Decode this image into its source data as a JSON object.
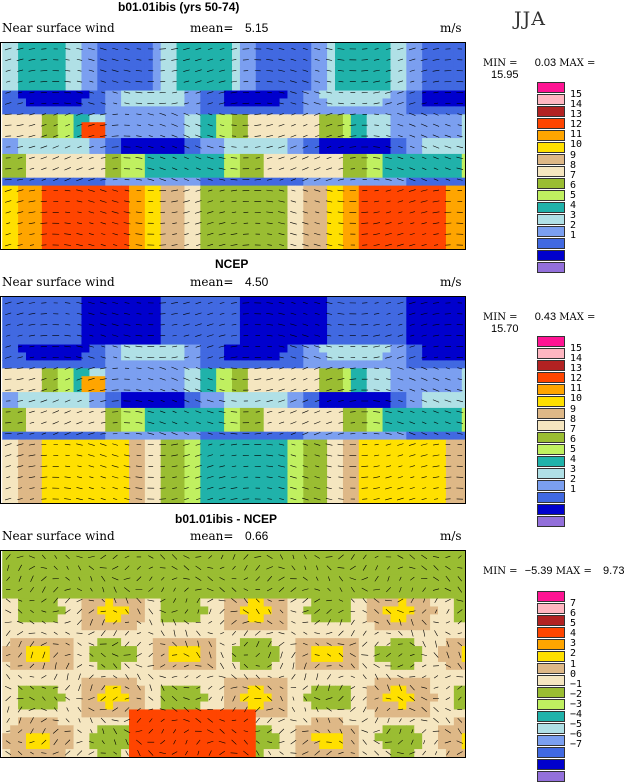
{
  "season": "JJA",
  "palette": [
    "#ff1493",
    "#ffb6c1",
    "#b22222",
    "#ff4500",
    "#ffa500",
    "#ffe000",
    "#deb887",
    "#f5e6c0",
    "#9abd32",
    "#c0f060",
    "#20b2aa",
    "#b0e0e6",
    "#7b9ff0",
    "#4169e1",
    "#0000cd",
    "#9370db"
  ],
  "panels": [
    {
      "title": "b01.01ibis (yrs 50-74)",
      "variable": "Near surface wind",
      "mean_label": "mean=",
      "mean": "5.15",
      "units": "m/s",
      "min_label": "MIN =",
      "min": "0.03",
      "max_label": "MAX =",
      "max": "15.95",
      "legend_ticks": [
        "15",
        "14",
        "13",
        "12",
        "11",
        "10",
        "9",
        "8",
        "7",
        "6",
        "5",
        "4",
        "3",
        "2",
        "1"
      ]
    },
    {
      "title": "NCEP",
      "variable": "Near surface wind",
      "mean_label": "mean=",
      "mean": "4.50",
      "units": "m/s",
      "min_label": "MIN =",
      "min": "0.43",
      "max_label": "MAX =",
      "max": "15.70",
      "legend_ticks": [
        "15",
        "14",
        "13",
        "12",
        "11",
        "10",
        "9",
        "8",
        "7",
        "6",
        "5",
        "4",
        "3",
        "2",
        "1"
      ]
    },
    {
      "title": "b01.01ibis - NCEP",
      "variable": "Near surface wind",
      "mean_label": "mean=",
      "mean": "0.66",
      "units": "m/s",
      "min_label": "MIN =",
      "min": "−5.39",
      "max_label": "MAX =",
      "max": "9.73",
      "legend_ticks": [
        "7",
        "6",
        "5",
        "4",
        "3",
        "2",
        "1",
        "0",
        "−1",
        "−2",
        "−3",
        "−4",
        "−5",
        "−6",
        "−7"
      ]
    }
  ]
}
